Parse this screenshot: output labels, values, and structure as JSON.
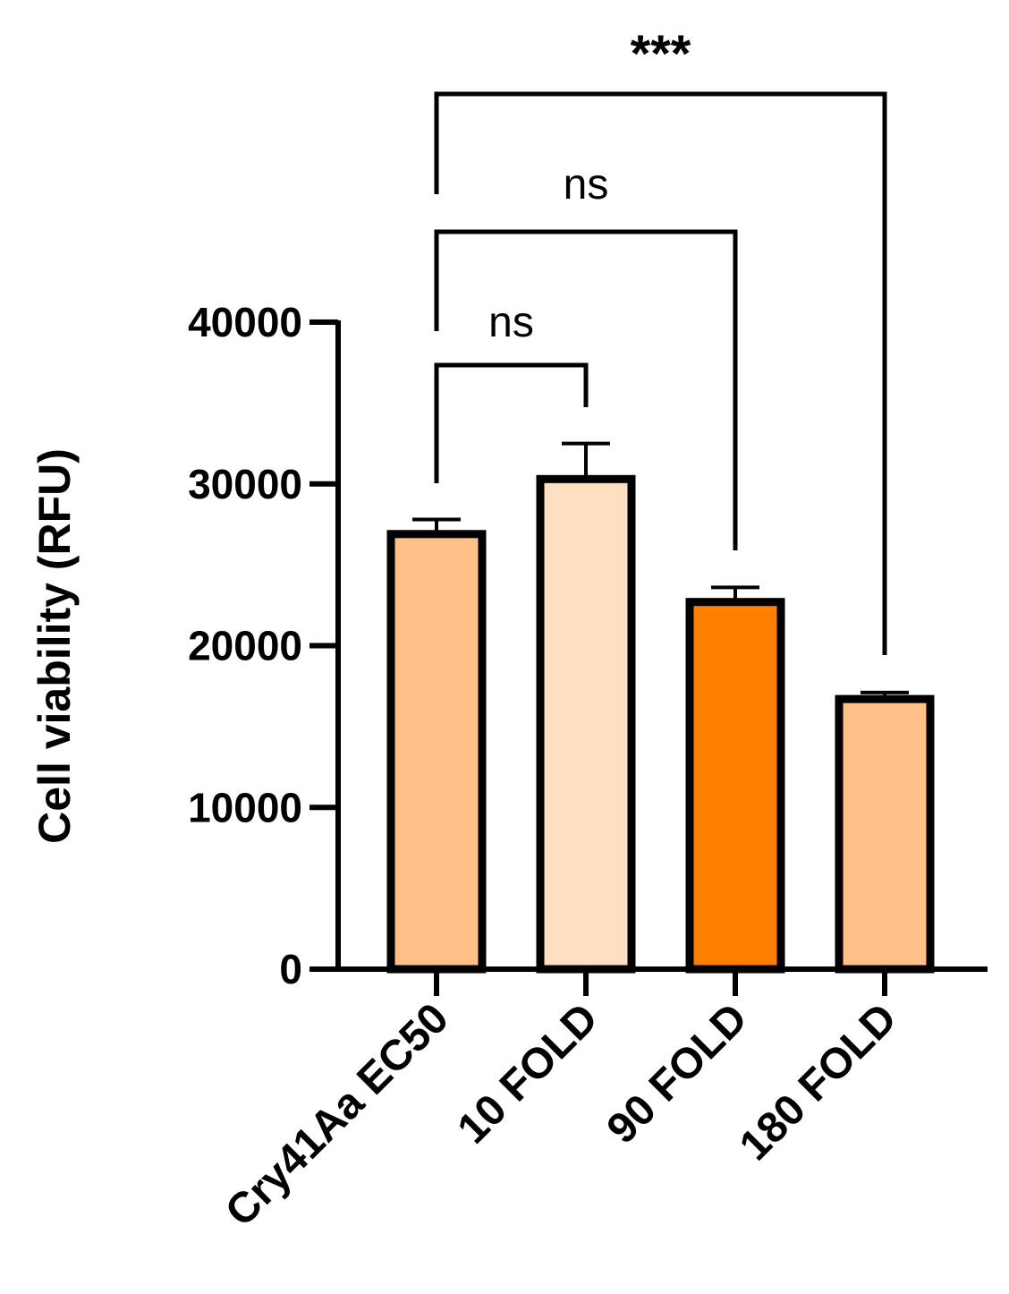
{
  "chart_data": {
    "type": "bar",
    "title": "",
    "xlabel": "",
    "ylabel": "Cell viability (RFU)",
    "ylim": [
      0,
      40000
    ],
    "yticks": [
      0,
      10000,
      20000,
      30000,
      40000
    ],
    "ytick_labels": [
      "0",
      "10000",
      "20000",
      "30000",
      "40000"
    ],
    "grid": false,
    "categories": [
      "Cry41Aa EC50",
      "10 FOLD",
      "90 FOLD",
      "180 FOLD"
    ],
    "values": [
      26900,
      30300,
      22700,
      16700
    ],
    "errors": [
      900,
      2200,
      900,
      400
    ],
    "bar_colors": [
      "#FFC187",
      "#FDE0C2",
      "#FF7F00",
      "#FFC187"
    ],
    "comparisons": [
      {
        "from": "Cry41Aa EC50",
        "to": "10 FOLD",
        "label": "ns"
      },
      {
        "from": "Cry41Aa EC50",
        "to": "90 FOLD",
        "label": "ns"
      },
      {
        "from": "Cry41Aa EC50",
        "to": "180 FOLD",
        "label": "***"
      }
    ]
  }
}
